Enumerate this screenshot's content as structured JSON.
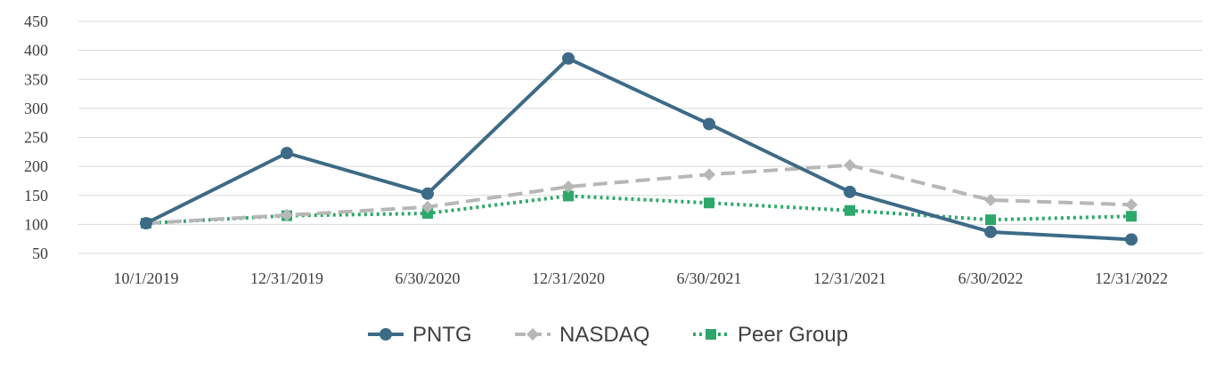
{
  "chart_data": {
    "type": "line",
    "title": "",
    "xlabel": "",
    "ylabel": "",
    "categories": [
      "10/1/2019",
      "12/31/2019",
      "6/30/2020",
      "12/31/2020",
      "6/30/2021",
      "12/31/2021",
      "6/30/2022",
      "12/31/2022"
    ],
    "yticks": [
      "450",
      "400",
      "350",
      "300",
      "250",
      "200",
      "150",
      "100",
      "50"
    ],
    "ylim": [
      50,
      450
    ],
    "grid": true,
    "legend_position": "bottom",
    "series": [
      {
        "name": "PNTG",
        "values": [
          102,
          223,
          153,
          386,
          273,
          156,
          87,
          74
        ],
        "color": "#3d6b87",
        "marker": "circle",
        "dash": "solid"
      },
      {
        "name": "NASDAQ",
        "values": [
          102,
          116,
          130,
          165,
          186,
          202,
          142,
          134
        ],
        "color": "#b7b7b7",
        "marker": "diamond",
        "dash": "dashed"
      },
      {
        "name": "Peer Group",
        "values": [
          102,
          115,
          119,
          149,
          137,
          124,
          108,
          114
        ],
        "color": "#2ea86a",
        "marker": "square",
        "dash": "dotted"
      }
    ]
  }
}
